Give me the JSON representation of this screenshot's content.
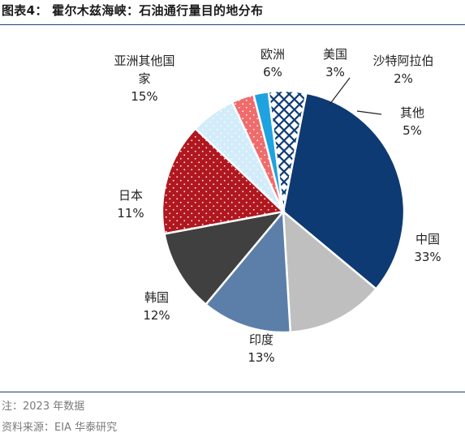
{
  "header": {
    "title": "图表4：  霍尔木兹海峡：石油通行量目的地分布"
  },
  "footer": {
    "note": "注：2023 年数据",
    "source": "资料来源：EIA 华泰研究"
  },
  "chart_data": {
    "type": "pie",
    "unit": "%",
    "slices": [
      {
        "name": "中国",
        "value": 33,
        "color": "#0e3a73",
        "pattern": "solid",
        "label_lines": [
          "中国"
        ],
        "pct_label": "33%"
      },
      {
        "name": "印度",
        "value": 13,
        "color": "#bfbfbf",
        "pattern": "solid",
        "label_lines": [
          "印度"
        ],
        "pct_label": "13%"
      },
      {
        "name": "韩国",
        "value": 12,
        "color": "#5b7fa8",
        "pattern": "solid",
        "label_lines": [
          "韩国"
        ],
        "pct_label": "12%"
      },
      {
        "name": "日本",
        "value": 11,
        "color": "#404040",
        "pattern": "solid",
        "label_lines": [
          "日本"
        ],
        "pct_label": "11%"
      },
      {
        "name": "亚洲其他国家",
        "value": 15,
        "color": "#b0171f",
        "pattern": "dots",
        "label_lines": [
          "亚洲其他国",
          "家"
        ],
        "pct_label": "15%"
      },
      {
        "name": "欧洲",
        "value": 6,
        "color": "#d2ecfa",
        "pattern": "dots",
        "label_lines": [
          "欧洲"
        ],
        "pct_label": "6%"
      },
      {
        "name": "美国",
        "value": 3,
        "color": "#f06b6b",
        "pattern": "dots",
        "label_lines": [
          "美国"
        ],
        "pct_label": "3%"
      },
      {
        "name": "沙特阿拉伯",
        "value": 2,
        "color": "#1fa3e0",
        "pattern": "solid",
        "label_lines": [
          "沙特阿拉伯"
        ],
        "pct_label": "2%"
      },
      {
        "name": "其他",
        "value": 5,
        "color": "#0e3a73",
        "pattern": "grid",
        "label_lines": [
          "其他"
        ],
        "pct_label": "5%"
      }
    ]
  }
}
